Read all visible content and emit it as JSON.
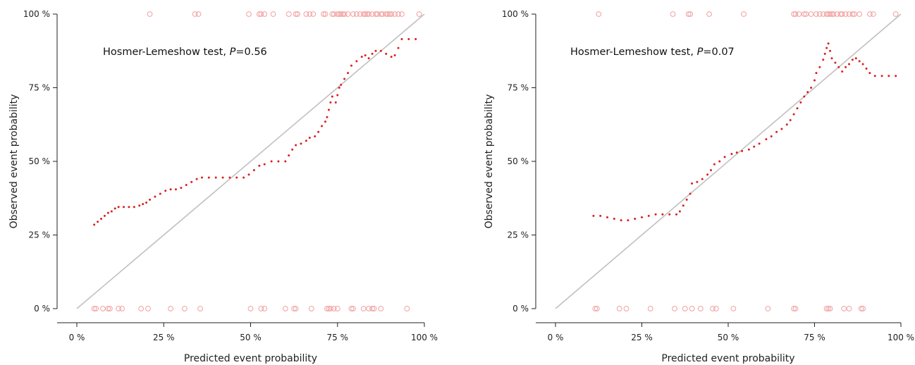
{
  "chart_data": [
    {
      "type": "scatter",
      "title": "",
      "xlabel": "Predicted event probability",
      "ylabel": "Observed event probability",
      "xlim": [
        0,
        100
      ],
      "ylim": [
        0,
        100
      ],
      "x_ticks": [
        "0 %",
        "25 %",
        "50 %",
        "75 %",
        "100 %"
      ],
      "y_ticks": [
        "0 %",
        "25 %",
        "50 %",
        "75 %",
        "100 %"
      ],
      "annotation": {
        "prefix": "Hosmer-Lemeshow test, ",
        "italic": "P",
        "suffix": "=0.56"
      },
      "reference_line": {
        "from": [
          0,
          0
        ],
        "to": [
          100,
          100
        ],
        "color": "#c0c0c0"
      },
      "colors": {
        "calibration": "#d92020",
        "observed": "#f2a0a0",
        "axis": "#222222"
      },
      "series": [
        {
          "points": [
            [
              5,
              28.5
            ],
            [
              6,
              29.5
            ],
            [
              7,
              30.5
            ],
            [
              8,
              31.5
            ],
            [
              9,
              32.5
            ],
            [
              10,
              33
            ],
            [
              11,
              34
            ],
            [
              12,
              34.5
            ],
            [
              13.5,
              34.5
            ],
            [
              15,
              34.5
            ],
            [
              16.5,
              34.5
            ],
            [
              18,
              35
            ],
            [
              19,
              35.5
            ],
            [
              20,
              36
            ],
            [
              21,
              37
            ],
            [
              22.5,
              38
            ],
            [
              24,
              39
            ],
            [
              25.5,
              40
            ],
            [
              27,
              40.5
            ],
            [
              28.5,
              40.5
            ],
            [
              30,
              41
            ],
            [
              31.5,
              42
            ],
            [
              33,
              43
            ],
            [
              34.5,
              44
            ],
            [
              36,
              44.5
            ],
            [
              38,
              44.5
            ],
            [
              40,
              44.5
            ],
            [
              42,
              44.5
            ],
            [
              44,
              44.5
            ],
            [
              46,
              44.5
            ],
            [
              48,
              44.5
            ],
            [
              49.5,
              45.5
            ],
            [
              51,
              47
            ],
            [
              52.5,
              48.5
            ],
            [
              54,
              49
            ],
            [
              56,
              50
            ],
            [
              58,
              50
            ],
            [
              60,
              50
            ],
            [
              61,
              52
            ],
            [
              62,
              54
            ],
            [
              63,
              55.5
            ],
            [
              64.5,
              56
            ],
            [
              66,
              57
            ],
            [
              67,
              58
            ],
            [
              68.5,
              58.5
            ],
            [
              69.5,
              60
            ],
            [
              70.5,
              62
            ],
            [
              71.5,
              63.5
            ],
            [
              72,
              65
            ],
            [
              72.5,
              67.5
            ],
            [
              73,
              70
            ],
            [
              73.5,
              72
            ],
            [
              74.5,
              70
            ],
            [
              75,
              72.5
            ],
            [
              75.5,
              75
            ],
            [
              76,
              76
            ],
            [
              77,
              78
            ],
            [
              78,
              80
            ],
            [
              79,
              82.5
            ],
            [
              80.5,
              84
            ],
            [
              82,
              85.5
            ],
            [
              83,
              86
            ],
            [
              84,
              85
            ],
            [
              85,
              86.5
            ],
            [
              86,
              87.5
            ],
            [
              87.5,
              87.5
            ],
            [
              89,
              86.5
            ],
            [
              90.5,
              85.5
            ],
            [
              91.5,
              86
            ],
            [
              92.5,
              88.5
            ],
            [
              93.5,
              91.5
            ],
            [
              95.5,
              91.5
            ],
            [
              97.5,
              91.5
            ]
          ]
        }
      ],
      "observed_events": {
        "x": [
          21,
          34,
          35,
          49.5,
          52.5,
          53,
          54,
          56.5,
          61,
          63,
          63.5,
          66,
          67,
          68,
          71,
          71.5,
          73.5,
          74,
          75,
          75.5,
          76,
          76.5,
          77,
          78,
          79.5,
          80.5,
          81.5,
          82.5,
          83,
          83.5,
          84,
          85,
          86,
          86.5,
          87.5,
          88,
          89,
          89.5,
          90,
          90.5,
          91.5,
          92.5,
          93.5,
          98.5
        ]
      },
      "observed_nonevents": {
        "x": [
          5,
          5.5,
          7.5,
          9,
          9.5,
          12,
          13,
          18.5,
          20.5,
          27,
          31,
          35.5,
          50,
          53,
          54,
          60,
          62.5,
          63,
          67.5,
          72,
          72.5,
          73,
          74,
          75,
          79,
          79.5,
          82.5,
          84,
          85,
          85.5,
          87.5,
          95
        ]
      }
    },
    {
      "type": "scatter",
      "title": "",
      "xlabel": "Predicted event probability",
      "ylabel": "Observed event probability",
      "xlim": [
        0,
        100
      ],
      "ylim": [
        0,
        100
      ],
      "x_ticks": [
        "0 %",
        "25 %",
        "50 %",
        "75 %",
        "100 %"
      ],
      "y_ticks": [
        "0 %",
        "25 %",
        "50 %",
        "75 %",
        "100 %"
      ],
      "annotation": {
        "prefix": "Hosmer-Lemeshow test, ",
        "italic": "P",
        "suffix": "=0.07"
      },
      "reference_line": {
        "from": [
          0,
          0
        ],
        "to": [
          100,
          100
        ],
        "color": "#c0c0c0"
      },
      "colors": {
        "calibration": "#d92020",
        "observed": "#f2a0a0",
        "axis": "#222222"
      },
      "series": [
        {
          "points": [
            [
              11,
              31.5
            ],
            [
              13,
              31.5
            ],
            [
              15,
              31
            ],
            [
              17,
              30.5
            ],
            [
              19,
              30
            ],
            [
              21,
              30
            ],
            [
              23,
              30.5
            ],
            [
              25,
              31
            ],
            [
              27,
              31.5
            ],
            [
              29,
              32
            ],
            [
              31,
              32
            ],
            [
              33,
              32
            ],
            [
              35,
              32
            ],
            [
              36,
              33
            ],
            [
              37,
              35
            ],
            [
              38,
              37
            ],
            [
              39,
              39
            ],
            [
              39.5,
              42.5
            ],
            [
              41,
              43
            ],
            [
              42.5,
              44
            ],
            [
              44,
              45.5
            ],
            [
              45,
              47
            ],
            [
              46,
              49
            ],
            [
              47.5,
              50
            ],
            [
              49,
              51.5
            ],
            [
              51,
              52.5
            ],
            [
              52.5,
              53
            ],
            [
              54,
              53.5
            ],
            [
              56,
              54
            ],
            [
              57.5,
              55
            ],
            [
              59,
              56
            ],
            [
              61,
              57.5
            ],
            [
              62.5,
              58.5
            ],
            [
              64,
              60
            ],
            [
              65.5,
              61
            ],
            [
              67,
              62.5
            ],
            [
              68,
              64
            ],
            [
              69,
              66
            ],
            [
              70,
              68
            ],
            [
              71,
              70
            ],
            [
              72,
              72
            ],
            [
              73,
              73.5
            ],
            [
              74,
              75
            ],
            [
              75,
              77.5
            ],
            [
              75.5,
              80
            ],
            [
              76.5,
              82
            ],
            [
              77.5,
              84.5
            ],
            [
              78,
              86.5
            ],
            [
              78.5,
              88.5
            ],
            [
              79,
              90
            ],
            [
              79.5,
              87.5
            ],
            [
              80,
              85
            ],
            [
              81,
              83.5
            ],
            [
              82,
              82
            ],
            [
              83,
              80.5
            ],
            [
              84,
              82
            ],
            [
              85,
              83
            ],
            [
              86,
              84.5
            ],
            [
              87,
              85
            ],
            [
              88,
              84
            ],
            [
              89,
              83
            ],
            [
              90,
              81.5
            ],
            [
              91,
              80
            ],
            [
              92.5,
              79
            ],
            [
              94.5,
              79
            ],
            [
              96.5,
              79
            ],
            [
              98.5,
              79
            ]
          ]
        }
      ],
      "observed_events": {
        "x": [
          12.5,
          34,
          38.5,
          39,
          44.5,
          54.5,
          69,
          69.5,
          70.5,
          72,
          72.5,
          74,
          75.5,
          76.5,
          77.5,
          78.5,
          79,
          79.5,
          80,
          80.5,
          81.5,
          82.5,
          83,
          84,
          85,
          86,
          86.5,
          88,
          91,
          92,
          98.5
        ]
      },
      "observed_nonevents": {
        "x": [
          11.5,
          12,
          18.5,
          20.5,
          27.5,
          34.5,
          37.5,
          39.5,
          42,
          45.5,
          46.5,
          51.5,
          61.5,
          69,
          69.5,
          78.5,
          79,
          79.5,
          83.5,
          85,
          88.5,
          89
        ]
      }
    }
  ]
}
